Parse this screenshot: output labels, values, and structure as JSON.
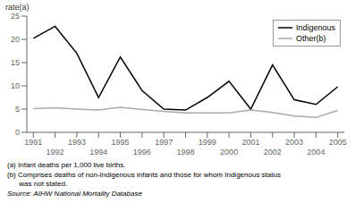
{
  "chart_data": {
    "type": "line",
    "ylabel": "rate(a)",
    "x": [
      1991,
      1992,
      1993,
      1994,
      1995,
      1996,
      1997,
      1998,
      1999,
      2000,
      2001,
      2002,
      2003,
      2004,
      2005
    ],
    "series": [
      {
        "name": "Indigenous",
        "color": "#000000",
        "values": [
          20.2,
          22.8,
          17.0,
          7.5,
          16.2,
          9.0,
          5.0,
          4.8,
          7.5,
          11.0,
          5.0,
          14.5,
          7.0,
          6.0,
          9.8
        ]
      },
      {
        "name": "Other(b)",
        "color": "#aaaaaa",
        "values": [
          5.1,
          5.3,
          5.0,
          4.8,
          5.4,
          4.9,
          4.5,
          4.2,
          4.2,
          4.2,
          4.8,
          4.3,
          3.5,
          3.2,
          4.7
        ]
      }
    ],
    "xlim": [
      1990.7,
      2005.3
    ],
    "xticks": [
      1991,
      1992,
      1993,
      1994,
      1995,
      1996,
      1997,
      1998,
      1999,
      2000,
      2001,
      2002,
      2003,
      2004,
      2005
    ],
    "ylim": [
      0,
      25
    ],
    "yticks": [
      0,
      5,
      10,
      15,
      20,
      25
    ],
    "grid": false,
    "legend": "upper right",
    "annotations": [
      "(a) Infant deaths per 1,000 live births.",
      "(b) Comprises deaths of non-Indigenous infants and those for whom Indigenous status",
      "      was not stated.",
      "Source: AIHW National Mortality Database"
    ]
  }
}
